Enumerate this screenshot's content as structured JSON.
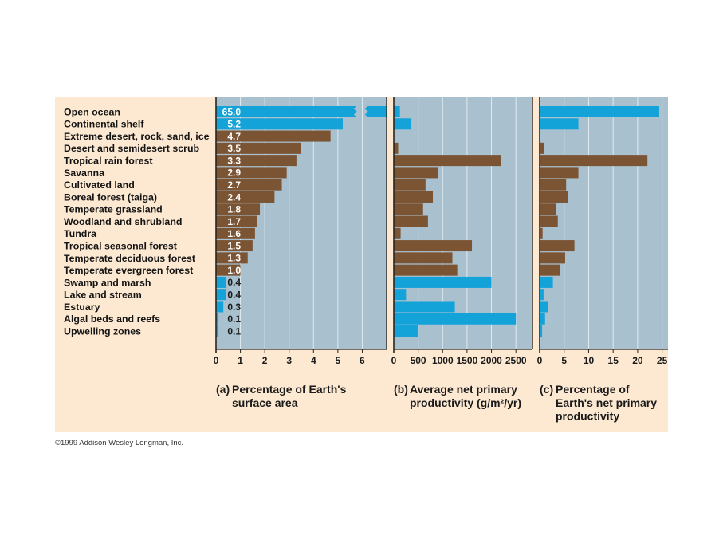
{
  "figure": {
    "copyright": "©1999 Addison Wesley Longman, Inc."
  },
  "colors": {
    "aquatic": "#14a3d8",
    "terrestrial": "#7b5434",
    "panel": "#a9c0cf",
    "background": "#fde9d2",
    "gridline": "#dfeaf0",
    "axis": "#2a2420",
    "value_label_light": "#ffffff",
    "value_label_dark": "#1b1b1b"
  },
  "category_groups": [
    "aquatic",
    "aquatic",
    "terrestrial",
    "terrestrial",
    "terrestrial",
    "terrestrial",
    "terrestrial",
    "terrestrial",
    "terrestrial",
    "terrestrial",
    "terrestrial",
    "terrestrial",
    "terrestrial",
    "terrestrial",
    "aquatic",
    "aquatic",
    "aquatic",
    "aquatic",
    "aquatic"
  ],
  "chart_data": [
    {
      "id": "a",
      "type": "bar",
      "orientation": "horizontal",
      "panel_letter": "(a)",
      "title_lines": [
        "Percentage of Earth's",
        "surface area"
      ],
      "title": "(a) Percentage of Earth's surface area",
      "xlabel": "Percentage of Earth's surface area",
      "ylabel": "",
      "categories": [
        "Open ocean",
        "Continental shelf",
        "Extreme desert, rock, sand, ice",
        "Desert and semidesert scrub",
        "Tropical rain forest",
        "Savanna",
        "Cultivated land",
        "Boreal forest (taiga)",
        "Temperate grassland",
        "Woodland and shrubland",
        "Tundra",
        "Tropical seasonal forest",
        "Temperate deciduous forest",
        "Temperate evergreen forest",
        "Swamp and marsh",
        "Lake and stream",
        "Estuary",
        "Algal beds and reefs",
        "Upwelling zones"
      ],
      "values": [
        65.0,
        5.2,
        4.7,
        3.5,
        3.3,
        2.9,
        2.7,
        2.4,
        1.8,
        1.7,
        1.6,
        1.5,
        1.3,
        1.0,
        0.4,
        0.4,
        0.3,
        0.1,
        0.1
      ],
      "value_labels": [
        "65.0",
        "5.2",
        "4.7",
        "3.5",
        "3.3",
        "2.9",
        "2.7",
        "2.4",
        "1.8",
        "1.7",
        "1.6",
        "1.5",
        "1.3",
        "1.0",
        "0.4",
        "0.4",
        "0.3",
        "0.1",
        "0.1"
      ],
      "xlim": [
        0,
        7
      ],
      "xticks": [
        0,
        1,
        2,
        3,
        4,
        5,
        6
      ],
      "xtick_labels": [
        "0",
        "1",
        "2",
        "3",
        "4",
        "5",
        "6"
      ],
      "grid": true,
      "axis_break": {
        "category": "Open ocean",
        "value": 65.0
      }
    },
    {
      "id": "b",
      "type": "bar",
      "orientation": "horizontal",
      "panel_letter": "(b)",
      "title_lines": [
        "Average net primary",
        "productivity (g/m²/yr)"
      ],
      "title": "(b) Average net primary productivity (g/m²/yr)",
      "xlabel": "Average net primary productivity (g/m²/yr)",
      "ylabel": "",
      "categories": [
        "Open ocean",
        "Continental shelf",
        "Extreme desert, rock, sand, ice",
        "Desert and semidesert scrub",
        "Tropical rain forest",
        "Savanna",
        "Cultivated land",
        "Boreal forest (taiga)",
        "Temperate grassland",
        "Woodland and shrubland",
        "Tundra",
        "Tropical seasonal forest",
        "Temperate deciduous forest",
        "Temperate evergreen forest",
        "Swamp and marsh",
        "Lake and stream",
        "Estuary",
        "Algal beds and reefs",
        "Upwelling zones"
      ],
      "values": [
        125,
        360,
        3,
        90,
        2200,
        900,
        650,
        800,
        600,
        700,
        140,
        1600,
        1200,
        1300,
        2000,
        250,
        1250,
        2500,
        500
      ],
      "xlim": [
        0,
        2840
      ],
      "xticks": [
        0,
        500,
        1000,
        1500,
        2000,
        2500
      ],
      "xtick_labels": [
        "0",
        "500",
        "1000",
        "1500",
        "2000",
        "2500"
      ],
      "grid": true
    },
    {
      "id": "c",
      "type": "bar",
      "orientation": "horizontal",
      "panel_letter": "(c)",
      "title_lines": [
        "Percentage of",
        "Earth's net primary",
        "productivity"
      ],
      "title": "(c) Percentage of Earth's net primary productivity",
      "xlabel": "Percentage of Earth's net primary productivity",
      "ylabel": "",
      "categories": [
        "Open ocean",
        "Continental shelf",
        "Extreme desert, rock, sand, ice",
        "Desert and semidesert scrub",
        "Tropical rain forest",
        "Savanna",
        "Cultivated land",
        "Boreal forest (taiga)",
        "Temperate grassland",
        "Woodland and shrubland",
        "Tundra",
        "Tropical seasonal forest",
        "Temperate deciduous forest",
        "Temperate evergreen forest",
        "Swamp and marsh",
        "Lake and stream",
        "Estuary",
        "Algal beds and reefs",
        "Upwelling zones"
      ],
      "values": [
        24.4,
        7.9,
        0.04,
        0.9,
        22.0,
        7.9,
        5.4,
        5.8,
        3.4,
        3.7,
        0.6,
        7.1,
        5.2,
        4.1,
        2.7,
        0.8,
        1.7,
        1.1,
        0.5
      ],
      "xlim": [
        0,
        26.2
      ],
      "xticks": [
        0,
        5,
        10,
        15,
        20,
        25
      ],
      "xtick_labels": [
        "0",
        "5",
        "10",
        "15",
        "20",
        "25"
      ],
      "grid": true
    }
  ]
}
